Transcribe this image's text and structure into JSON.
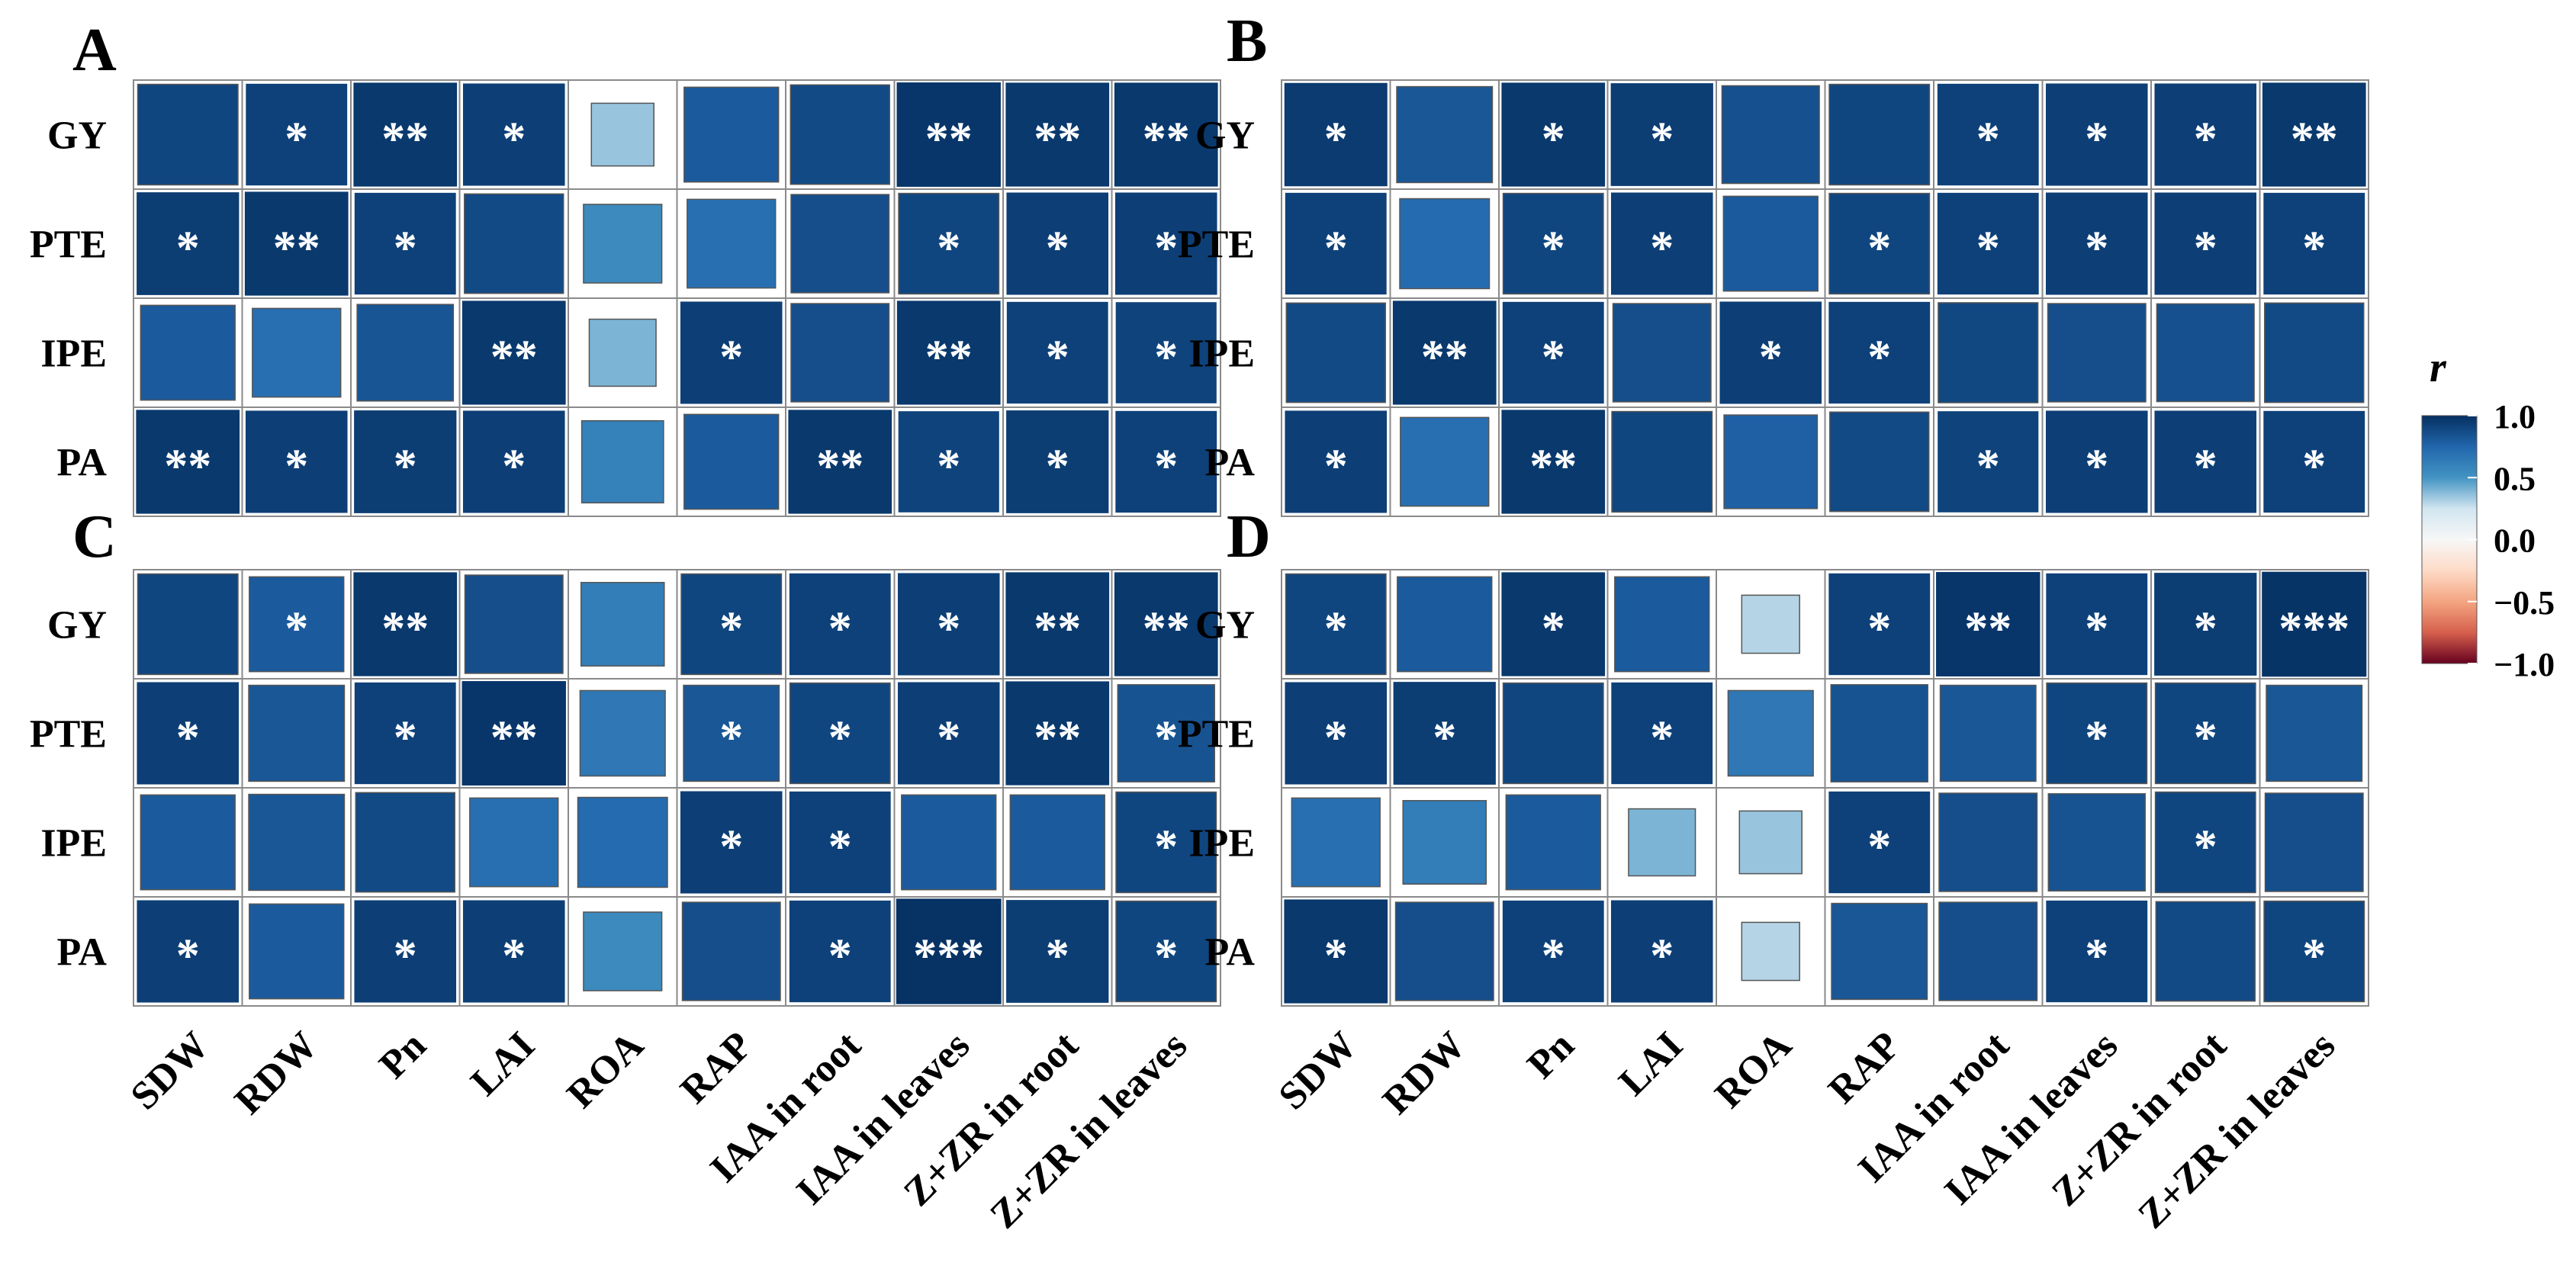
{
  "rows": [
    "GY",
    "PTE",
    "IPE",
    "PA"
  ],
  "columns": [
    "SDW",
    "RDW",
    "Pn",
    "LAI",
    "ROA",
    "RAP",
    "IAA in root",
    "IAA in leaves",
    "Z+ZR in root",
    "Z+ZR in leaves"
  ],
  "colors": {
    "positive_dark": "#053061",
    "positive_mid": "#4393c3",
    "neutral": "#f7f7f7",
    "negative_dark": "#67001f",
    "cell_border": "#7a7a7a",
    "star": "#ffffff"
  },
  "chart_data": [
    {
      "type": "heatmap",
      "panel": "A",
      "values": [
        [
          0.9,
          0.92,
          0.96,
          0.93,
          0.35,
          0.8,
          0.88,
          0.97,
          0.96,
          0.96
        ],
        [
          0.94,
          0.96,
          0.92,
          0.88,
          0.55,
          0.7,
          0.86,
          0.9,
          0.93,
          0.93
        ],
        [
          0.8,
          0.7,
          0.83,
          0.96,
          0.4,
          0.93,
          0.86,
          0.96,
          0.92,
          0.91
        ],
        [
          0.96,
          0.93,
          0.94,
          0.93,
          0.6,
          0.8,
          0.96,
          0.91,
          0.94,
          0.92
        ]
      ],
      "stars": [
        [
          "",
          "*",
          "**",
          "*",
          "",
          "",
          "",
          "**",
          "**",
          "**"
        ],
        [
          "*",
          "**",
          "*",
          "",
          "",
          "",
          "",
          "*",
          "*",
          "*"
        ],
        [
          "",
          "",
          "",
          "**",
          "",
          "*",
          "",
          "**",
          "*",
          "*"
        ],
        [
          "**",
          "*",
          "*",
          "*",
          "",
          "",
          "**",
          "*",
          "*",
          "*"
        ]
      ]
    },
    {
      "type": "heatmap",
      "panel": "B",
      "values": [
        [
          0.95,
          0.82,
          0.96,
          0.94,
          0.85,
          0.9,
          0.92,
          0.93,
          0.93,
          0.96
        ],
        [
          0.92,
          0.72,
          0.9,
          0.93,
          0.8,
          0.9,
          0.92,
          0.93,
          0.93,
          0.92
        ],
        [
          0.88,
          0.96,
          0.92,
          0.86,
          0.93,
          0.92,
          0.89,
          0.86,
          0.85,
          0.88
        ],
        [
          0.93,
          0.7,
          0.96,
          0.9,
          0.78,
          0.88,
          0.91,
          0.93,
          0.93,
          0.92
        ]
      ],
      "stars": [
        [
          "*",
          "",
          "*",
          "*",
          "",
          "",
          "*",
          "*",
          "*",
          "**"
        ],
        [
          "*",
          "",
          "*",
          "*",
          "",
          "*",
          "*",
          "*",
          "*",
          "*"
        ],
        [
          "",
          "**",
          "*",
          "",
          "*",
          "*",
          "",
          "",
          "",
          ""
        ],
        [
          "*",
          "",
          "**",
          "",
          "",
          "",
          "*",
          "*",
          "*",
          "*"
        ]
      ]
    },
    {
      "type": "heatmap",
      "panel": "C",
      "values": [
        [
          0.9,
          0.8,
          0.96,
          0.86,
          0.62,
          0.9,
          0.92,
          0.93,
          0.96,
          0.96
        ],
        [
          0.93,
          0.82,
          0.92,
          0.97,
          0.65,
          0.82,
          0.9,
          0.93,
          0.96,
          0.84
        ],
        [
          0.8,
          0.82,
          0.88,
          0.7,
          0.72,
          0.93,
          0.92,
          0.8,
          0.8,
          0.9
        ],
        [
          0.93,
          0.8,
          0.93,
          0.93,
          0.55,
          0.86,
          0.92,
          0.99,
          0.94,
          0.9
        ]
      ],
      "stars": [
        [
          "",
          "*",
          "**",
          "",
          "",
          "*",
          "*",
          "*",
          "**",
          "**"
        ],
        [
          "*",
          "",
          "*",
          "**",
          "",
          "*",
          "*",
          "*",
          "**",
          "*"
        ],
        [
          "",
          "",
          "",
          "",
          "",
          "*",
          "*",
          "",
          "",
          "*"
        ],
        [
          "*",
          "",
          "*",
          "*",
          "",
          "",
          "*",
          "***",
          "*",
          "*"
        ]
      ]
    },
    {
      "type": "heatmap",
      "panel": "D",
      "values": [
        [
          0.9,
          0.8,
          0.96,
          0.8,
          0.3,
          0.92,
          0.97,
          0.92,
          0.94,
          0.98
        ],
        [
          0.93,
          0.94,
          0.9,
          0.92,
          0.65,
          0.84,
          0.82,
          0.9,
          0.9,
          0.82
        ],
        [
          0.7,
          0.62,
          0.8,
          0.4,
          0.35,
          0.92,
          0.86,
          0.84,
          0.9,
          0.86
        ],
        [
          0.96,
          0.86,
          0.92,
          0.93,
          0.3,
          0.82,
          0.86,
          0.92,
          0.88,
          0.9
        ]
      ],
      "stars": [
        [
          "*",
          "",
          "*",
          "",
          "",
          "*",
          "**",
          "*",
          "*",
          "***"
        ],
        [
          "*",
          "*",
          "",
          "*",
          "",
          "",
          "",
          "*",
          "*",
          ""
        ],
        [
          "",
          "",
          "",
          "",
          "",
          "*",
          "",
          "",
          "*",
          ""
        ],
        [
          "*",
          "",
          "*",
          "*",
          "",
          "",
          "",
          "*",
          "",
          "*"
        ]
      ]
    }
  ],
  "legend": {
    "title": "r",
    "ticks": [
      "1.0",
      "0.5",
      "0.0",
      "−0.5",
      "−1.0"
    ],
    "tick_values": [
      1.0,
      0.5,
      0.0,
      -0.5,
      -1.0
    ],
    "range": [
      -1.0,
      1.0
    ]
  }
}
